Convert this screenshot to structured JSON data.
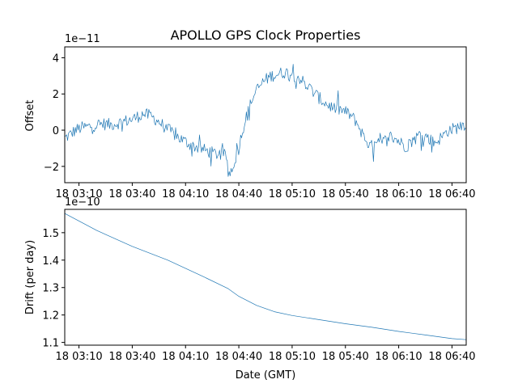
{
  "chart_data": [
    {
      "type": "line",
      "title": "APOLLO GPS Clock Properties",
      "ylabel": "Offset",
      "xlabel": "",
      "scale_label": "1e−11",
      "ylim": [
        -2.9,
        4.6
      ],
      "xlim_minutes": [
        0,
        218
      ],
      "yticks": [
        {
          "label": "4",
          "value": 4
        },
        {
          "label": "2",
          "value": 2
        },
        {
          "label": "0",
          "value": 0
        },
        {
          "label": "−2",
          "value": -2
        }
      ],
      "xticks": [
        {
          "label": "18 03:10",
          "minutes": 0
        },
        {
          "label": "18 03:40",
          "minutes": 30
        },
        {
          "label": "18 04:10",
          "minutes": 60
        },
        {
          "label": "18 04:40",
          "minutes": 90
        },
        {
          "label": "18 05:10",
          "minutes": 120
        },
        {
          "label": "18 05:40",
          "minutes": 150
        },
        {
          "label": "18 06:10",
          "minutes": 180
        },
        {
          "label": "18 06:40",
          "minutes": 210
        }
      ],
      "series": [
        {
          "name": "Offset",
          "color": "#1f77b4",
          "x_minutes": [
            -8,
            -5,
            -2,
            2,
            6,
            10,
            14,
            18,
            22,
            26,
            30,
            33,
            36,
            40,
            44,
            48,
            52,
            56,
            60,
            64,
            68,
            72,
            75,
            79,
            83,
            84,
            85,
            87,
            90,
            92,
            95,
            97,
            100,
            104,
            108,
            112,
            116,
            120,
            124,
            127,
            130,
            133,
            136,
            140,
            144,
            148,
            152,
            156,
            160,
            164,
            168,
            172,
            176,
            180,
            184,
            188,
            192,
            196,
            200,
            204,
            208,
            212,
            216,
            218
          ],
          "values": [
            -0.45,
            -0.25,
            0.0,
            0.15,
            0.2,
            0.3,
            0.35,
            0.3,
            0.4,
            0.5,
            0.6,
            0.75,
            0.9,
            0.8,
            0.55,
            0.2,
            -0.1,
            -0.4,
            -0.65,
            -0.85,
            -1.0,
            -1.15,
            -1.25,
            -1.35,
            -1.4,
            -2.5,
            -2.3,
            -1.9,
            -1.0,
            0.0,
            0.9,
            1.6,
            2.2,
            2.7,
            3.0,
            3.1,
            3.2,
            3.1,
            2.9,
            2.6,
            2.3,
            2.0,
            1.7,
            1.4,
            1.2,
            1.1,
            0.9,
            0.5,
            -0.3,
            -0.9,
            -0.8,
            -0.6,
            -0.3,
            -0.6,
            -0.9,
            -0.6,
            -0.2,
            -0.4,
            -0.7,
            -0.4,
            0.0,
            0.1,
            0.3,
            0.35
          ]
        }
      ]
    },
    {
      "type": "line",
      "title": "",
      "ylabel": "Drift (per day)",
      "xlabel": "Date (GMT)",
      "scale_label": "1e−10",
      "ylim": [
        1.09,
        1.585
      ],
      "xlim_minutes": [
        0,
        218
      ],
      "yticks": [
        {
          "label": "1.5",
          "value": 1.5
        },
        {
          "label": "1.4",
          "value": 1.4
        },
        {
          "label": "1.3",
          "value": 1.3
        },
        {
          "label": "1.2",
          "value": 1.2
        },
        {
          "label": "1.1",
          "value": 1.1
        }
      ],
      "xticks": [
        {
          "label": "18 03:10",
          "minutes": 0
        },
        {
          "label": "18 03:40",
          "minutes": 30
        },
        {
          "label": "18 04:10",
          "minutes": 60
        },
        {
          "label": "18 04:40",
          "minutes": 90
        },
        {
          "label": "18 05:10",
          "minutes": 120
        },
        {
          "label": "18 05:40",
          "minutes": 150
        },
        {
          "label": "18 06:10",
          "minutes": 180
        },
        {
          "label": "18 06:40",
          "minutes": 210
        }
      ],
      "series": [
        {
          "name": "Drift",
          "color": "#1f77b4",
          "x_minutes": [
            -8,
            10,
            30,
            50,
            70,
            84,
            90,
            100,
            110,
            120,
            135,
            150,
            165,
            180,
            195,
            210,
            218
          ],
          "values": [
            1.57,
            1.508,
            1.45,
            1.4,
            1.34,
            1.296,
            1.268,
            1.235,
            1.212,
            1.198,
            1.183,
            1.168,
            1.155,
            1.14,
            1.127,
            1.114,
            1.11
          ]
        }
      ]
    }
  ]
}
